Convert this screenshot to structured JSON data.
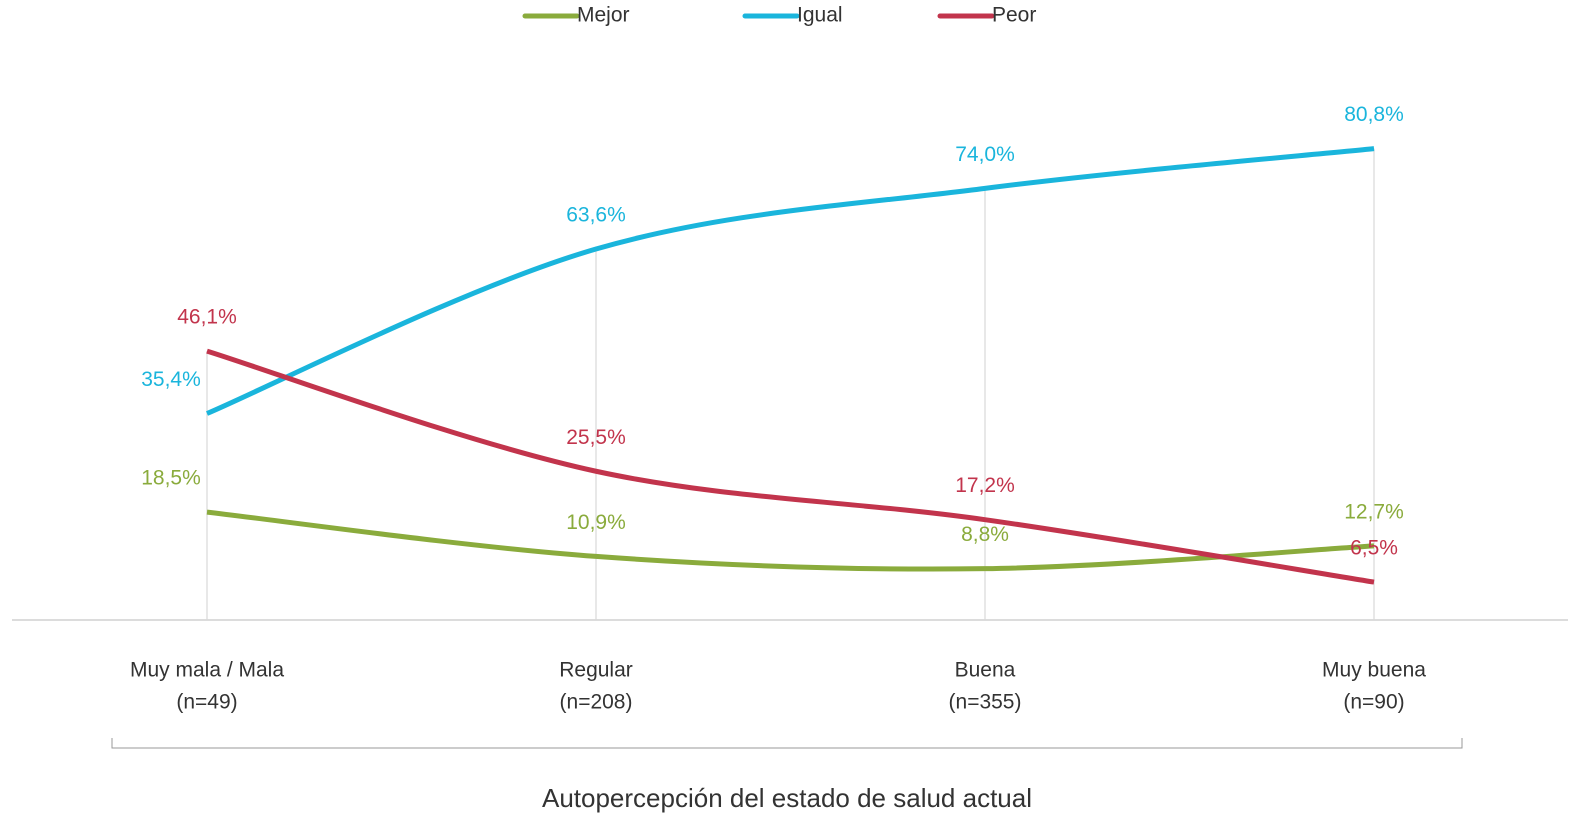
{
  "chart_data": {
    "type": "line",
    "x_label": "Autopercepción del estado de salud actual",
    "categories": [
      "Muy mala / Mala",
      "Regular",
      "Buena",
      "Muy buena"
    ],
    "category_counts": [
      "(n=49)",
      "(n=208)",
      "(n=355)",
      "(n=90)"
    ],
    "ylim": [
      0,
      90
    ],
    "smooth": true,
    "series": [
      {
        "name": "Mejor",
        "color": "#8aab3c",
        "values": [
          18.5,
          10.9,
          8.8,
          12.7
        ],
        "value_labels": [
          "18,5%",
          "10,9%",
          "8,8%",
          "12,7%"
        ]
      },
      {
        "name": "Igual",
        "color": "#1ab5dc",
        "values": [
          35.4,
          63.6,
          74.0,
          80.8
        ],
        "value_labels": [
          "35,4%",
          "63,6%",
          "74,0%",
          "80,8%"
        ]
      },
      {
        "name": "Peor",
        "color": "#c2344c",
        "values": [
          46.1,
          25.5,
          17.2,
          6.5
        ],
        "value_labels": [
          "46,1%",
          "25,5%",
          "17,2%",
          "6,5%"
        ]
      }
    ]
  }
}
